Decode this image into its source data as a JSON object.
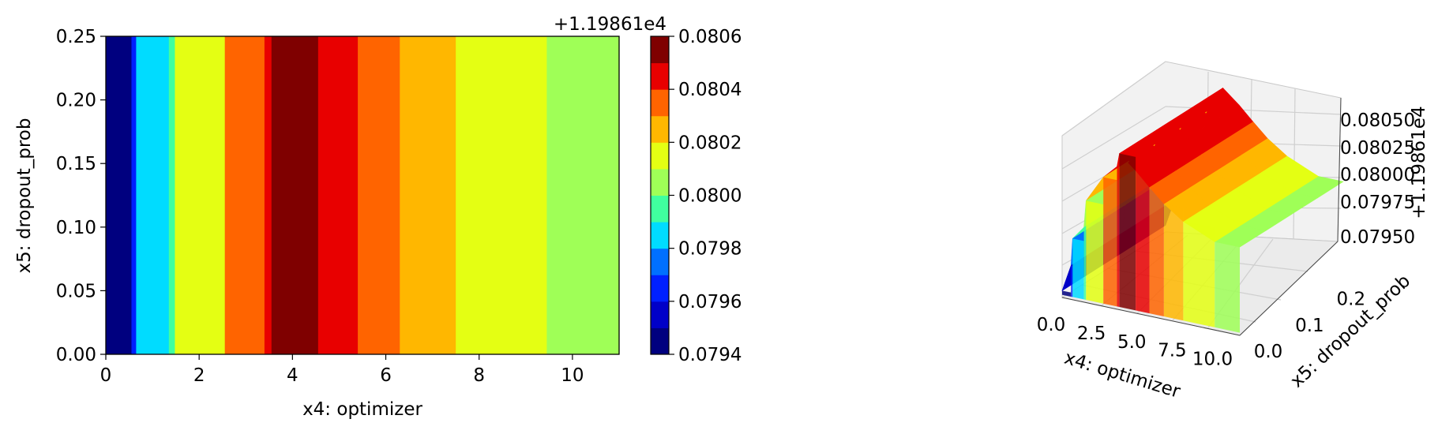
{
  "chart_data": [
    {
      "type": "heatmap",
      "subtype": "filled-contour",
      "xlabel": "x4: optimizer",
      "ylabel": "x5: dropout_prob",
      "xlim": [
        0,
        11
      ],
      "ylim": [
        0,
        0.25
      ],
      "x_ticks": [
        "0",
        "2",
        "4",
        "6",
        "8",
        "10"
      ],
      "y_ticks": [
        "0.00",
        "0.05",
        "0.10",
        "0.15",
        "0.20",
        "0.25"
      ],
      "colormap": "jet",
      "colorbar": {
        "offset_label": "+1.19861e4",
        "ticks": [
          "0.0794",
          "0.0796",
          "0.0798",
          "0.0800",
          "0.0802",
          "0.0804",
          "0.0806"
        ],
        "levels": [
          0.0794,
          0.0795,
          0.0796,
          0.0797,
          0.0798,
          0.0799,
          0.08,
          0.0801,
          0.0802,
          0.0803,
          0.0804,
          0.0805,
          0.0806
        ],
        "level_colors": [
          "#00007f",
          "#0000c8",
          "#0020ff",
          "#0070ff",
          "#00dcff",
          "#40ff9f",
          "#9fff57",
          "#e4ff13",
          "#ffb700",
          "#ff6400",
          "#e80000",
          "#7f0000"
        ]
      },
      "bands": [
        {
          "x_start": 0,
          "x_end": 0.55,
          "value": 0.07945
        },
        {
          "x_start": 0.55,
          "x_end": 0.65,
          "value": 0.07965
        },
        {
          "x_start": 0.65,
          "x_end": 1.35,
          "value": 0.07985
        },
        {
          "x_start": 1.35,
          "x_end": 1.48,
          "value": 0.07995
        },
        {
          "x_start": 1.48,
          "x_end": 2.55,
          "value": 0.08015
        },
        {
          "x_start": 2.55,
          "x_end": 3.4,
          "value": 0.08035
        },
        {
          "x_start": 3.4,
          "x_end": 3.55,
          "value": 0.08045
        },
        {
          "x_start": 3.55,
          "x_end": 4.55,
          "value": 0.08055
        },
        {
          "x_start": 4.55,
          "x_end": 5.4,
          "value": 0.08045
        },
        {
          "x_start": 5.4,
          "x_end": 6.3,
          "value": 0.08035
        },
        {
          "x_start": 6.3,
          "x_end": 7.5,
          "value": 0.08025
        },
        {
          "x_start": 7.5,
          "x_end": 9.45,
          "value": 0.08015
        },
        {
          "x_start": 9.45,
          "x_end": 11,
          "value": 0.08005
        }
      ]
    },
    {
      "type": "surface",
      "xlabel": "x4: optimizer",
      "ylabel": "x5: dropout_prob",
      "zlabel": "+1.19861e4",
      "x_ticks": [
        "0.0",
        "2.5",
        "5.0",
        "7.5",
        "10.0"
      ],
      "y_ticks": [
        "0.0",
        "0.1",
        "0.2"
      ],
      "z_ticks": [
        "0.08050",
        "0.08025",
        "0.08000",
        "0.07975",
        "0.07950"
      ],
      "colormap": "jet",
      "x": [
        0,
        0.55,
        0.65,
        1.35,
        1.48,
        2.55,
        3.4,
        3.55,
        4.55,
        5.4,
        6.3,
        7.5,
        9.45,
        11
      ],
      "z": [
        0.07945,
        0.07965,
        0.07985,
        0.07995,
        0.08015,
        0.08035,
        0.08045,
        0.08055,
        0.08045,
        0.08035,
        0.08025,
        0.08015,
        0.08005,
        0.08005
      ]
    }
  ]
}
